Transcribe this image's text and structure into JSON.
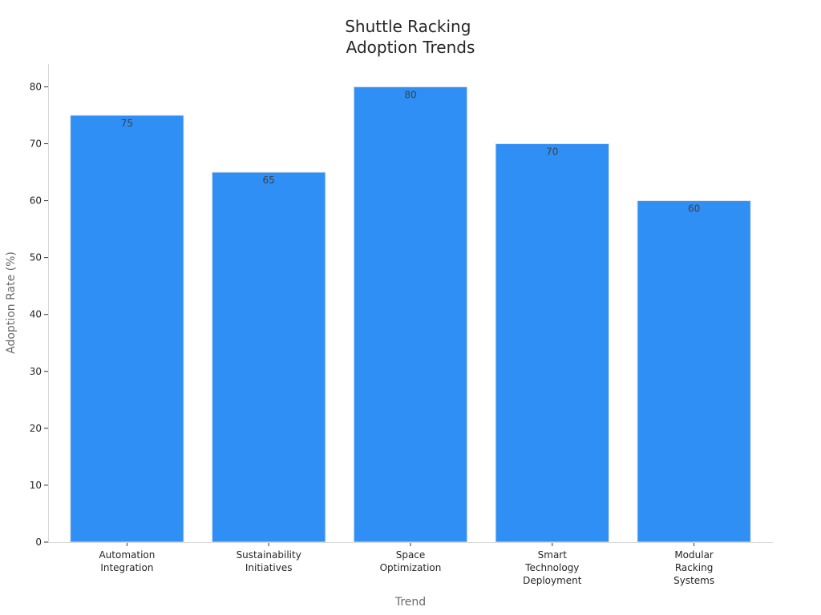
{
  "chart_data": {
    "type": "bar",
    "title": [
      "Shuttle Racking",
      "Adoption Trends"
    ],
    "xlabel": "Trend",
    "ylabel": "Adoption Rate (%)",
    "categories": [
      [
        "Automation",
        "Integration"
      ],
      [
        "Sustainability",
        "Initiatives"
      ],
      [
        "Space",
        "Optimization"
      ],
      [
        "Smart",
        "Technology",
        "Deployment"
      ],
      [
        "Modular",
        "Racking",
        "Systems"
      ]
    ],
    "values": [
      75,
      65,
      80,
      70,
      60
    ],
    "data_labels": [
      "75",
      "65",
      "80",
      "70",
      "60"
    ],
    "yticks": [
      0,
      10,
      20,
      30,
      40,
      50,
      60,
      70,
      80
    ],
    "ylim": [
      0,
      84
    ],
    "grid": false,
    "legend": "none",
    "bar_color": "#2f8ff5"
  }
}
